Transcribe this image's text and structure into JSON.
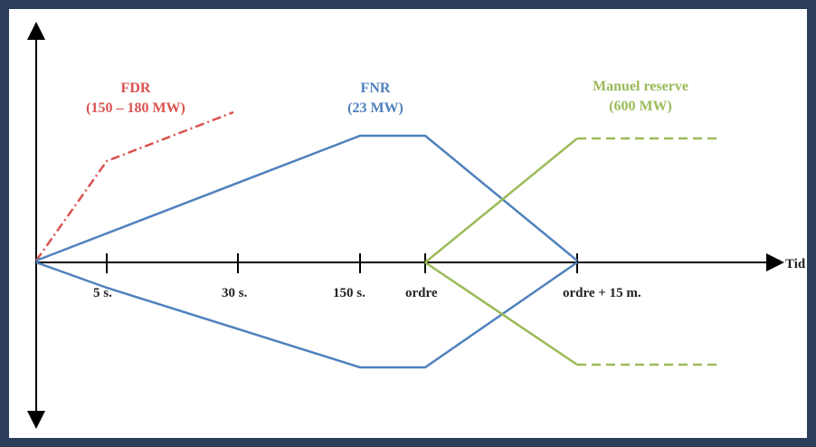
{
  "axis": {
    "x_label": "Tid",
    "ticks": [
      {
        "label": "5 s.",
        "t": 1
      },
      {
        "label": "30 s.",
        "t": 2
      },
      {
        "label": "150 s.",
        "t": 3
      },
      {
        "label": "ordre",
        "t": 4
      },
      {
        "label": "ordre + 15 m.",
        "t": 6
      }
    ]
  },
  "series": {
    "fdr": {
      "name": "FDR",
      "range": "(150 – 180 MW)",
      "color": "#d9534f"
    },
    "fnr": {
      "name": "FNR",
      "range": "(23 MW)",
      "color": "#4f81bd"
    },
    "manual": {
      "name": "Manuel reserve",
      "range": "(600 MW)",
      "color": "#9bbb59"
    }
  }
}
